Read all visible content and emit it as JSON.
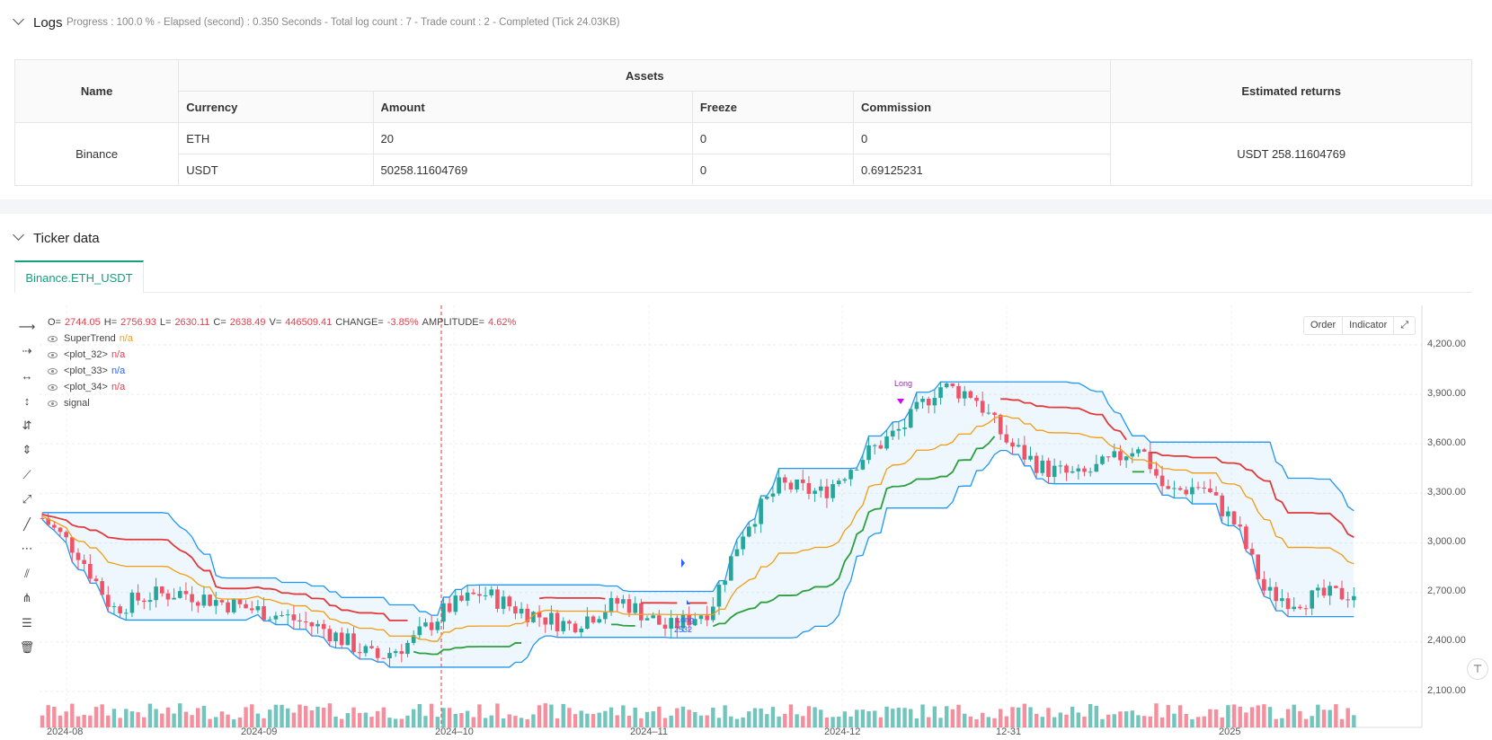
{
  "logs": {
    "title": "Logs",
    "meta": "Progress : 100.0 % - Elapsed (second) : 0.350  Seconds - Total log count : 7 - Trade count : 2 - Completed (Tick 24.03KB)"
  },
  "assets_table": {
    "headers": {
      "name": "Name",
      "assets": "Assets",
      "estimated_returns": "Estimated returns",
      "currency": "Currency",
      "amount": "Amount",
      "freeze": "Freeze",
      "commission": "Commission"
    },
    "exchange": "Binance",
    "rows": [
      {
        "currency": "ETH",
        "amount": "20",
        "freeze": "0",
        "commission": "0"
      },
      {
        "currency": "USDT",
        "amount": "50258.11604769",
        "freeze": "0",
        "commission": "0.69125231"
      }
    ],
    "estimated_returns_value": "USDT 258.11604769"
  },
  "ticker": {
    "title": "Ticker data",
    "tab_label": "Binance.ETH_USDT"
  },
  "chart_controls": {
    "order": "Order",
    "indicator": "Indicator"
  },
  "legend": {
    "ohlc": {
      "o_label": "O=",
      "o": "2744.05",
      "h_label": "H=",
      "h": "2756.93",
      "l_label": "L=",
      "l": "2630.11",
      "c_label": "C=",
      "c": "2638.49",
      "v_label": "V=",
      "v": "446509.41",
      "change_label": "CHANGE=",
      "change": "-3.85%",
      "amp_label": "AMPLITUDE=",
      "amp": "4.62%"
    },
    "items": [
      {
        "name": "SuperTrend",
        "value": "n/a",
        "color": "#f0a020"
      },
      {
        "name": "<plot_32>",
        "value": "n/a",
        "color": "#e0414d"
      },
      {
        "name": "<plot_33>",
        "value": "n/a",
        "color": "#2962ff"
      },
      {
        "name": "<plot_34>",
        "value": "n/a",
        "color": "#e0414d"
      },
      {
        "name": "signal",
        "value": "",
        "color": "#888888"
      }
    ]
  },
  "chart_data": {
    "type": "candlestick",
    "y_ticks": [
      "4,200.00",
      "3,900.00",
      "3,600.00",
      "3,300.00",
      "3,000.00",
      "2,700.00",
      "2,400.00",
      "2,100.00"
    ],
    "x_ticks": [
      "2024-08",
      "2024-09",
      "2024–10",
      "2024–11",
      "2024-12",
      "12-31",
      "2025"
    ],
    "ylim": [
      2000,
      4300
    ],
    "markers": [
      {
        "label": "Long",
        "sublabel": "2532"
      },
      {
        "label": "Long",
        "sublabel": ""
      }
    ],
    "colors": {
      "up": "#26a69a",
      "down": "#ef5368",
      "band": "#2196f3",
      "supertrend_up": "#2e9e3e",
      "supertrend_down": "#e03a3a",
      "mid": "#f39c12"
    }
  },
  "icons": [
    "chevron-down-icon",
    "fullscreen-icon",
    "crosshair-icon",
    "trash-icon"
  ]
}
